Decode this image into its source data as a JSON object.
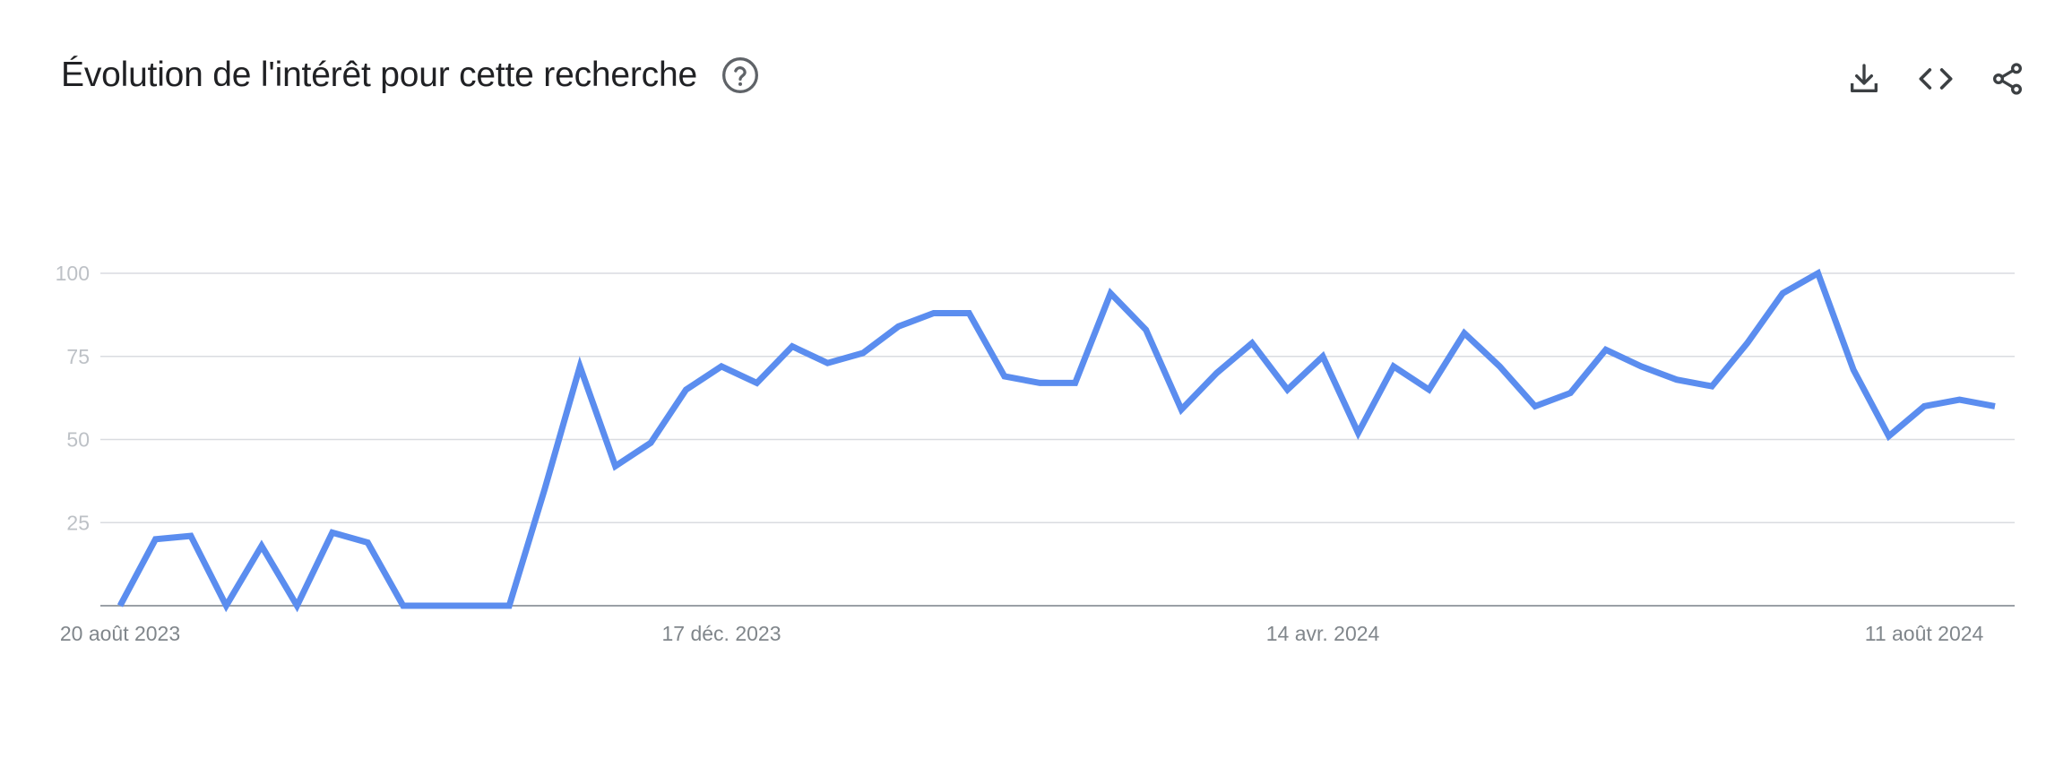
{
  "header": {
    "title": "Évolution de l'intérêt pour cette recherche",
    "help_icon": "help-circle-icon"
  },
  "toolbar": {
    "icons": [
      "download-icon",
      "embed-code-icon",
      "share-icon"
    ]
  },
  "colors": {
    "line": "#5b8def",
    "grid": "#dadce0",
    "axis": "#9aa0a6",
    "text": "#202124",
    "icon": "#5f6368"
  },
  "chart_data": {
    "type": "line",
    "title": "",
    "xlabel": "",
    "ylabel": "",
    "ylim": [
      0,
      100
    ],
    "grid": true,
    "x_tick_labels": [
      "20 août 2023",
      "17 déc. 2023",
      "14 avr. 2024",
      "11 août 2024"
    ],
    "y_tick_labels": [
      "100",
      "75",
      "50",
      "25"
    ],
    "y_tick_values": [
      100,
      75,
      50,
      25
    ],
    "series": [
      {
        "values": [
          0,
          20,
          21,
          0,
          18,
          0,
          22,
          19,
          0,
          0,
          0,
          0,
          35,
          72,
          42,
          49,
          65,
          72,
          67,
          78,
          73,
          76,
          84,
          88,
          88,
          69,
          67,
          67,
          94,
          83,
          59,
          70,
          79,
          65,
          75,
          52,
          72,
          65,
          82,
          72,
          60,
          64,
          77,
          72,
          68,
          66,
          79,
          94,
          100,
          71,
          51,
          60,
          62,
          60
        ]
      }
    ]
  }
}
